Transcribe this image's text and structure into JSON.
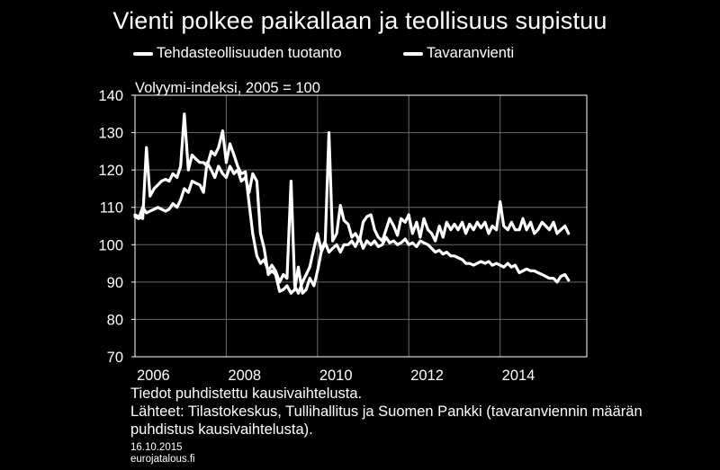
{
  "title": "Vienti polkee paikallaan ja teollisuus supistuu",
  "unit_label": "Volyymi-indeksi, 2005 = 100",
  "notes": {
    "line1": "Tiedot puhdistettu kausivaihtelusta.",
    "line2": "Lähteet: Tilastokeskus, Tullihallitus ja Suomen Pankki (tavaranviennin määrän",
    "line3": "puhdistus kausivaihtelusta)."
  },
  "footer": {
    "date": "16.10.2015",
    "source": "eurojatalous.fi"
  },
  "colors": {
    "background": "#000000",
    "line": "#ffffff",
    "grid": "#6a6a6a"
  },
  "chart_data": {
    "type": "line",
    "xlim": [
      2006.0,
      2015.9
    ],
    "ylim": [
      70,
      140
    ],
    "yticks": [
      "70",
      "80",
      "90",
      "100",
      "110",
      "120",
      "130",
      "140"
    ],
    "xticks": [
      "2006",
      "2008",
      "2010",
      "2012",
      "2014"
    ],
    "grid": true,
    "legend_position": "top",
    "series": [
      {
        "name": "Tehdasteollisuuden tuotanto",
        "points": [
          [
            2006.0,
            107.5
          ],
          [
            2006.08,
            107
          ],
          [
            2006.17,
            110
          ],
          [
            2006.25,
            108.5
          ],
          [
            2006.33,
            109
          ],
          [
            2006.42,
            109.5
          ],
          [
            2006.5,
            110
          ],
          [
            2006.58,
            109.5
          ],
          [
            2006.67,
            109
          ],
          [
            2006.75,
            109.5
          ],
          [
            2006.83,
            111
          ],
          [
            2006.92,
            110
          ],
          [
            2007.0,
            112
          ],
          [
            2007.08,
            115
          ],
          [
            2007.17,
            114
          ],
          [
            2007.25,
            117
          ],
          [
            2007.33,
            116.5
          ],
          [
            2007.42,
            116
          ],
          [
            2007.5,
            114
          ],
          [
            2007.58,
            122
          ],
          [
            2007.67,
            120
          ],
          [
            2007.75,
            118
          ],
          [
            2007.83,
            121
          ],
          [
            2007.92,
            119
          ],
          [
            2008.0,
            118
          ],
          [
            2008.08,
            121
          ],
          [
            2008.17,
            119
          ],
          [
            2008.25,
            120
          ],
          [
            2008.33,
            117
          ],
          [
            2008.42,
            118
          ],
          [
            2008.5,
            114
          ],
          [
            2008.58,
            119
          ],
          [
            2008.67,
            117
          ],
          [
            2008.75,
            103
          ],
          [
            2008.83,
            99
          ],
          [
            2008.92,
            92
          ],
          [
            2009.0,
            93
          ],
          [
            2009.08,
            92
          ],
          [
            2009.17,
            87.5
          ],
          [
            2009.25,
            88
          ],
          [
            2009.33,
            89
          ],
          [
            2009.42,
            87
          ],
          [
            2009.5,
            88
          ],
          [
            2009.58,
            94
          ],
          [
            2009.67,
            87
          ],
          [
            2009.75,
            88
          ],
          [
            2009.83,
            91
          ],
          [
            2009.92,
            89
          ],
          [
            2010.0,
            93
          ],
          [
            2010.08,
            98
          ],
          [
            2010.17,
            100.5
          ],
          [
            2010.25,
            98
          ],
          [
            2010.33,
            99
          ],
          [
            2010.42,
            100
          ],
          [
            2010.5,
            98
          ],
          [
            2010.58,
            100
          ],
          [
            2010.67,
            100
          ],
          [
            2010.75,
            101
          ],
          [
            2010.83,
            99.5
          ],
          [
            2010.92,
            102
          ],
          [
            2011.0,
            99
          ],
          [
            2011.08,
            101
          ],
          [
            2011.17,
            100
          ],
          [
            2011.25,
            101
          ],
          [
            2011.33,
            99.5
          ],
          [
            2011.42,
            100
          ],
          [
            2011.5,
            102
          ],
          [
            2011.58,
            100.5
          ],
          [
            2011.67,
            101
          ],
          [
            2011.75,
            100
          ],
          [
            2011.83,
            100.5
          ],
          [
            2011.92,
            101.5
          ],
          [
            2012.0,
            100
          ],
          [
            2012.08,
            100.5
          ],
          [
            2012.17,
            99.5
          ],
          [
            2012.25,
            101
          ],
          [
            2012.33,
            100.5
          ],
          [
            2012.42,
            100
          ],
          [
            2012.5,
            99
          ],
          [
            2012.58,
            98
          ],
          [
            2012.67,
            98.5
          ],
          [
            2012.75,
            97.5
          ],
          [
            2012.83,
            98
          ],
          [
            2012.92,
            97
          ],
          [
            2013.0,
            97
          ],
          [
            2013.08,
            96.5
          ],
          [
            2013.17,
            96
          ],
          [
            2013.25,
            95
          ],
          [
            2013.33,
            95
          ],
          [
            2013.42,
            94.5
          ],
          [
            2013.5,
            95
          ],
          [
            2013.58,
            95.5
          ],
          [
            2013.67,
            95
          ],
          [
            2013.75,
            95.5
          ],
          [
            2013.83,
            94.5
          ],
          [
            2013.92,
            95
          ],
          [
            2014.0,
            94.5
          ],
          [
            2014.08,
            94
          ],
          [
            2014.17,
            95
          ],
          [
            2014.25,
            94
          ],
          [
            2014.33,
            94.5
          ],
          [
            2014.42,
            92.5
          ],
          [
            2014.5,
            93
          ],
          [
            2014.58,
            93.5
          ],
          [
            2014.67,
            93
          ],
          [
            2014.75,
            93
          ],
          [
            2014.83,
            92.5
          ],
          [
            2014.92,
            92
          ],
          [
            2015.0,
            91.5
          ],
          [
            2015.08,
            91
          ],
          [
            2015.17,
            91
          ],
          [
            2015.25,
            90
          ],
          [
            2015.33,
            91.5
          ],
          [
            2015.42,
            92
          ],
          [
            2015.5,
            90.5
          ]
        ]
      },
      {
        "name": "Tavaranvienti",
        "points": [
          [
            2006.0,
            108
          ],
          [
            2006.08,
            107.5
          ],
          [
            2006.17,
            107
          ],
          [
            2006.25,
            126
          ],
          [
            2006.33,
            113
          ],
          [
            2006.42,
            115
          ],
          [
            2006.5,
            116
          ],
          [
            2006.58,
            117
          ],
          [
            2006.67,
            117.5
          ],
          [
            2006.75,
            117
          ],
          [
            2006.83,
            119
          ],
          [
            2006.92,
            118
          ],
          [
            2007.0,
            121
          ],
          [
            2007.08,
            135
          ],
          [
            2007.17,
            120
          ],
          [
            2007.25,
            124
          ],
          [
            2007.33,
            123
          ],
          [
            2007.42,
            122
          ],
          [
            2007.5,
            122
          ],
          [
            2007.58,
            121
          ],
          [
            2007.67,
            125
          ],
          [
            2007.75,
            124
          ],
          [
            2007.83,
            126
          ],
          [
            2007.92,
            130.5
          ],
          [
            2008.0,
            122
          ],
          [
            2008.08,
            127
          ],
          [
            2008.17,
            124
          ],
          [
            2008.25,
            121
          ],
          [
            2008.33,
            119
          ],
          [
            2008.42,
            119.5
          ],
          [
            2008.5,
            111
          ],
          [
            2008.58,
            103
          ],
          [
            2008.67,
            97
          ],
          [
            2008.75,
            95
          ],
          [
            2008.83,
            96
          ],
          [
            2008.92,
            93
          ],
          [
            2009.0,
            94.5
          ],
          [
            2009.08,
            93
          ],
          [
            2009.17,
            90
          ],
          [
            2009.25,
            92
          ],
          [
            2009.33,
            91
          ],
          [
            2009.42,
            117
          ],
          [
            2009.5,
            89
          ],
          [
            2009.58,
            87
          ],
          [
            2009.67,
            90
          ],
          [
            2009.75,
            92
          ],
          [
            2009.83,
            94
          ],
          [
            2009.92,
            99
          ],
          [
            2010.0,
            103
          ],
          [
            2010.08,
            98.5
          ],
          [
            2010.17,
            101
          ],
          [
            2010.25,
            130
          ],
          [
            2010.33,
            101
          ],
          [
            2010.42,
            103
          ],
          [
            2010.5,
            110.5
          ],
          [
            2010.58,
            106.5
          ],
          [
            2010.67,
            105.5
          ],
          [
            2010.75,
            102
          ],
          [
            2010.83,
            103
          ],
          [
            2010.92,
            101
          ],
          [
            2011.0,
            106
          ],
          [
            2011.08,
            107.5
          ],
          [
            2011.17,
            108
          ],
          [
            2011.25,
            104
          ],
          [
            2011.33,
            102
          ],
          [
            2011.42,
            101
          ],
          [
            2011.5,
            104
          ],
          [
            2011.58,
            107
          ],
          [
            2011.67,
            105
          ],
          [
            2011.75,
            102.5
          ],
          [
            2011.83,
            107
          ],
          [
            2011.92,
            106
          ],
          [
            2012.0,
            108
          ],
          [
            2012.08,
            103
          ],
          [
            2012.17,
            106
          ],
          [
            2012.25,
            102
          ],
          [
            2012.33,
            107
          ],
          [
            2012.42,
            104
          ],
          [
            2012.5,
            103
          ],
          [
            2012.58,
            101
          ],
          [
            2012.67,
            105
          ],
          [
            2012.75,
            102
          ],
          [
            2012.83,
            106
          ],
          [
            2012.92,
            104
          ],
          [
            2013.0,
            105.5
          ],
          [
            2013.08,
            104
          ],
          [
            2013.17,
            106
          ],
          [
            2013.25,
            103
          ],
          [
            2013.33,
            105.5
          ],
          [
            2013.42,
            104
          ],
          [
            2013.5,
            106
          ],
          [
            2013.58,
            104.5
          ],
          [
            2013.67,
            106
          ],
          [
            2013.75,
            103
          ],
          [
            2013.83,
            105
          ],
          [
            2013.92,
            104
          ],
          [
            2014.0,
            111.5
          ],
          [
            2014.08,
            105
          ],
          [
            2014.17,
            104
          ],
          [
            2014.25,
            106
          ],
          [
            2014.33,
            104
          ],
          [
            2014.42,
            104
          ],
          [
            2014.5,
            107
          ],
          [
            2014.58,
            104
          ],
          [
            2014.67,
            106
          ],
          [
            2014.75,
            103
          ],
          [
            2014.83,
            104
          ],
          [
            2014.92,
            106
          ],
          [
            2015.0,
            105
          ],
          [
            2015.08,
            104
          ],
          [
            2015.17,
            106
          ],
          [
            2015.25,
            103
          ],
          [
            2015.33,
            104
          ],
          [
            2015.42,
            105
          ],
          [
            2015.5,
            103
          ]
        ]
      }
    ]
  }
}
